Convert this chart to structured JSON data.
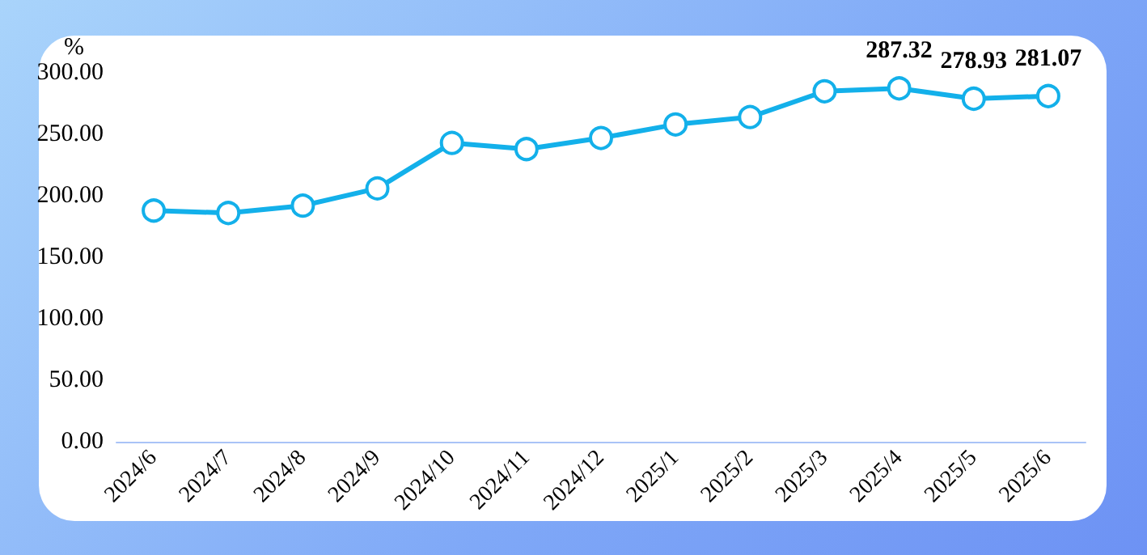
{
  "chart_data": {
    "type": "line",
    "ylabel": "%",
    "categories": [
      "2024/6",
      "2024/7",
      "2024/8",
      "2024/9",
      "2024/10",
      "2024/11",
      "2024/12",
      "2025/1",
      "2025/2",
      "2025/3",
      "2025/4",
      "2025/5",
      "2025/6"
    ],
    "series": [
      {
        "color": "#13b0ea",
        "values": [
          188,
          186,
          192,
          206,
          243,
          238,
          247,
          258,
          264,
          285,
          287.32,
          278.93,
          281.07
        ],
        "value_labels": [
          null,
          null,
          null,
          null,
          null,
          null,
          null,
          null,
          null,
          null,
          "287.32",
          "278.93",
          "281.07"
        ]
      }
    ],
    "ylim": [
      0,
      300
    ],
    "yticks": [
      {
        "value": 0,
        "label": "0.00"
      },
      {
        "value": 50,
        "label": "50.00"
      },
      {
        "value": 100,
        "label": "100.00"
      },
      {
        "value": 150,
        "label": "150.00"
      },
      {
        "value": 200,
        "label": "200.00"
      },
      {
        "value": 250,
        "label": "250.00"
      },
      {
        "value": 300,
        "label": "300.00"
      }
    ],
    "grid": false,
    "marker": "circle",
    "line_style": "solid"
  }
}
